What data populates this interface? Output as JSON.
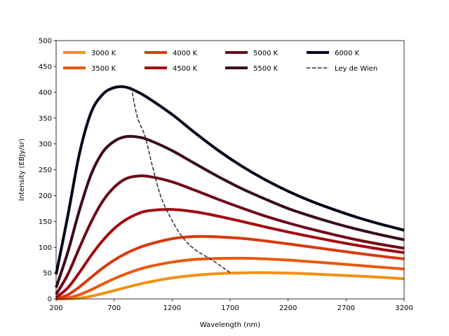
{
  "chart_data": {
    "type": "line",
    "xlabel": "Wavelength (nm)",
    "ylabel": "Intensity (EBJy/sr)",
    "xlim": [
      200,
      3200
    ],
    "ylim": [
      0,
      500
    ],
    "xticks": [
      200,
      700,
      1200,
      1700,
      2200,
      2700,
      3200
    ],
    "yticks": [
      0,
      50,
      100,
      150,
      200,
      250,
      300,
      350,
      400,
      450,
      500
    ],
    "x_sample": [
      200,
      300,
      400,
      500,
      600,
      700,
      800,
      900,
      1000,
      1200,
      1400,
      1600,
      1800,
      2000,
      2200,
      2400,
      2600,
      2800,
      3000,
      3200
    ],
    "series": [
      {
        "name": "3000 K",
        "color": "#f39016",
        "values": [
          0.0,
          0.2,
          1.6,
          5.0,
          10.3,
          16.2,
          22.0,
          27.7,
          32.7,
          40.6,
          45.8,
          48.9,
          50.5,
          50.8,
          49.9,
          48.4,
          46.3,
          44.2,
          41.9,
          39.0
        ]
      },
      {
        "name": "3500 K",
        "color": "#e8590c",
        "values": [
          0.1,
          2.0,
          8.0,
          17.6,
          28.5,
          39.0,
          48.3,
          56.2,
          62.5,
          71.2,
          76.5,
          78.3,
          78.8,
          77.5,
          75.2,
          72.0,
          68.6,
          65.0,
          61.3,
          58.0
        ]
      },
      {
        "name": "4000 K",
        "color": "#d73a0e",
        "values": [
          0.7,
          7.8,
          23.0,
          41.4,
          59.5,
          75.0,
          87.8,
          98.0,
          105.6,
          116.5,
          120.8,
          120.0,
          117.2,
          112.3,
          106.6,
          100.4,
          94.3,
          88.3,
          82.6,
          77.5
        ]
      },
      {
        "name": "4500 K",
        "color": "#a4090f",
        "values": [
          2.8,
          21.2,
          50.8,
          83.5,
          112.5,
          136.0,
          153.0,
          164.5,
          170.8,
          173.1,
          168.5,
          160.0,
          150.0,
          139.5,
          129.5,
          120.3,
          111.5,
          103.5,
          96.0,
          89.5
        ]
      },
      {
        "name": "5000 K",
        "color": "#6e0a19",
        "values": [
          8.8,
          47.0,
          98.5,
          148.0,
          188.5,
          216.0,
          232.5,
          237.8,
          237.0,
          226.5,
          210.0,
          192.5,
          176.0,
          160.5,
          147.0,
          135.0,
          124.0,
          114.0,
          105.5,
          98.0
        ]
      },
      {
        "name": "5500 K",
        "color": "#3b0a1e",
        "values": [
          22.0,
          90.0,
          171.0,
          240.0,
          283.5,
          305.0,
          314.0,
          313.5,
          307.5,
          287.0,
          261.5,
          236.5,
          213.5,
          193.5,
          175.0,
          160.0,
          146.5,
          134.5,
          124.0,
          114.5
        ]
      },
      {
        "name": "6000 K",
        "color": "#03061a",
        "values": [
          47.5,
          160.0,
          280.0,
          360.0,
          395.5,
          409.0,
          410.0,
          401.0,
          388.0,
          357.0,
          321.0,
          287.0,
          257.0,
          231.0,
          208.5,
          189.0,
          172.5,
          157.5,
          144.5,
          133.0
        ]
      }
    ],
    "wien": {
      "name": "Ley de Wien",
      "color": "#2b2b3d",
      "x": [
        848,
        900,
        966,
        1030,
        1100,
        1180,
        1288,
        1400,
        1546,
        1700
      ],
      "values": [
        410,
        352,
        315,
        257,
        200,
        160,
        120,
        95,
        75,
        51
      ]
    }
  }
}
